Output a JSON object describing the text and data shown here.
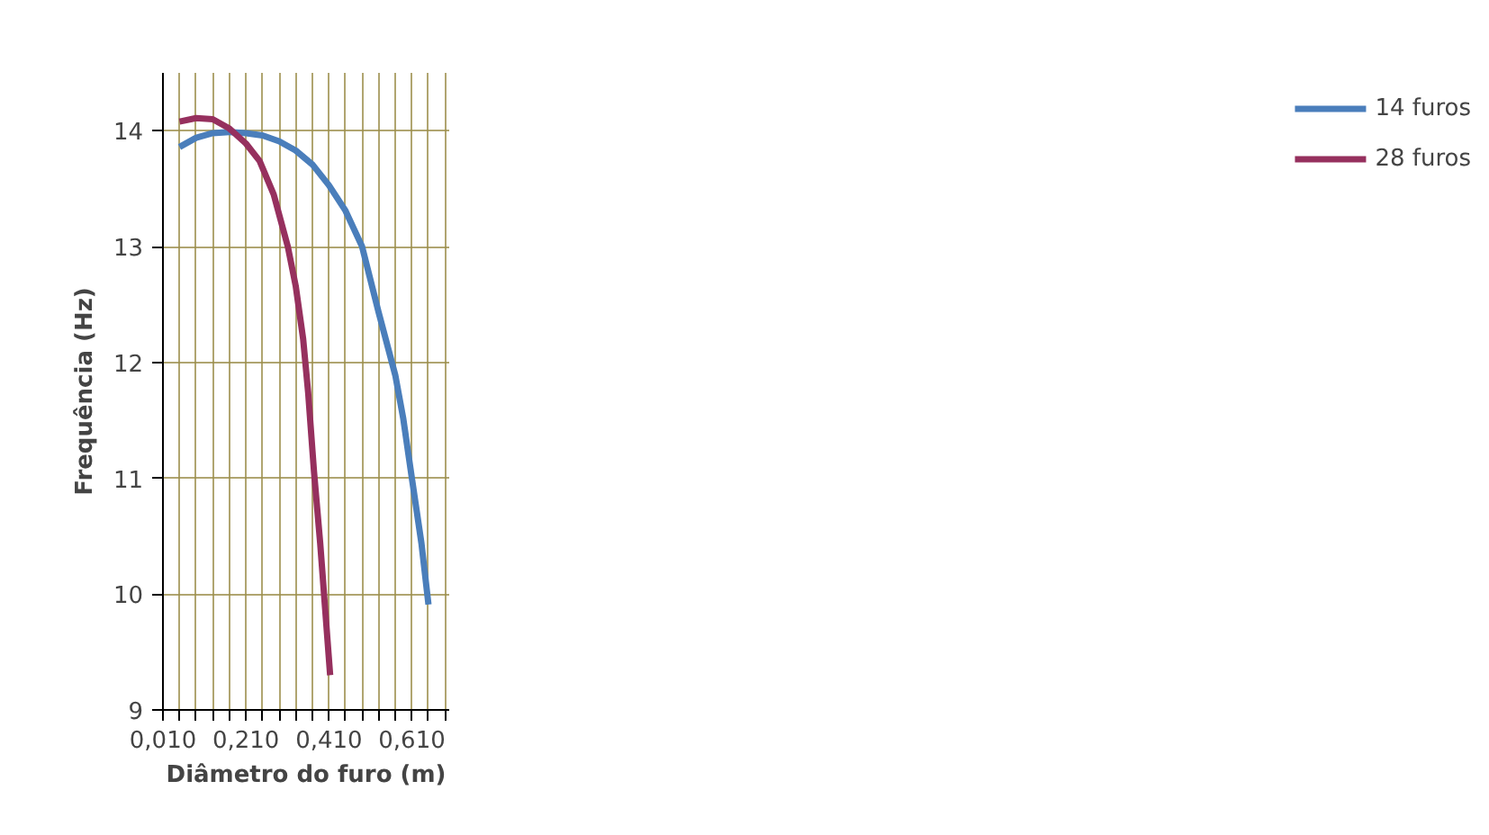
{
  "chart_data": {
    "type": "line",
    "xlabel": "Diâmetro do furo (m)",
    "ylabel": "Frequência (Hz)",
    "xlim": [
      0.01,
      0.7
    ],
    "ylim": [
      9,
      14.5
    ],
    "xticks": [
      {
        "value": 0.01,
        "label": "0,010"
      },
      {
        "value": 0.05,
        "label": null
      },
      {
        "value": 0.09,
        "label": null
      },
      {
        "value": 0.13,
        "label": null
      },
      {
        "value": 0.17,
        "label": null
      },
      {
        "value": 0.21,
        "label": "0,210"
      },
      {
        "value": 0.25,
        "label": null
      },
      {
        "value": 0.29,
        "label": null
      },
      {
        "value": 0.33,
        "label": null
      },
      {
        "value": 0.37,
        "label": null
      },
      {
        "value": 0.41,
        "label": "0,410"
      },
      {
        "value": 0.45,
        "label": null
      },
      {
        "value": 0.49,
        "label": null
      },
      {
        "value": 0.53,
        "label": null
      },
      {
        "value": 0.57,
        "label": null
      },
      {
        "value": 0.61,
        "label": "0,610"
      },
      {
        "value": 0.65,
        "label": null
      },
      {
        "value": 0.69,
        "label": null
      }
    ],
    "yticks": [
      9,
      10,
      11,
      12,
      13,
      14
    ],
    "grid": true,
    "legend": "right",
    "marker": "none",
    "line_style": "solid",
    "series": [
      {
        "name": "14 furos",
        "color": "#4a7ebb",
        "x": [
          0.05,
          0.09,
          0.13,
          0.17,
          0.21,
          0.25,
          0.29,
          0.33,
          0.37,
          0.41,
          0.45,
          0.49,
          0.53,
          0.57,
          0.589,
          0.61,
          0.633,
          0.65
        ],
        "values": [
          13.86,
          13.94,
          13.98,
          13.99,
          13.98,
          13.96,
          13.91,
          13.83,
          13.71,
          13.53,
          13.31,
          13.0,
          12.43,
          11.89,
          11.52,
          11.0,
          10.44,
          9.91
        ]
      },
      {
        "name": "28 furos",
        "color": "#96305e",
        "x": [
          0.05,
          0.09,
          0.13,
          0.17,
          0.21,
          0.243,
          0.277,
          0.311,
          0.33,
          0.348,
          0.36,
          0.374,
          0.389,
          0.401,
          0.413
        ],
        "values": [
          14.08,
          14.11,
          14.1,
          14.02,
          13.89,
          13.74,
          13.45,
          13.0,
          12.66,
          12.2,
          11.74,
          11.06,
          10.44,
          9.87,
          9.3
        ]
      }
    ]
  }
}
